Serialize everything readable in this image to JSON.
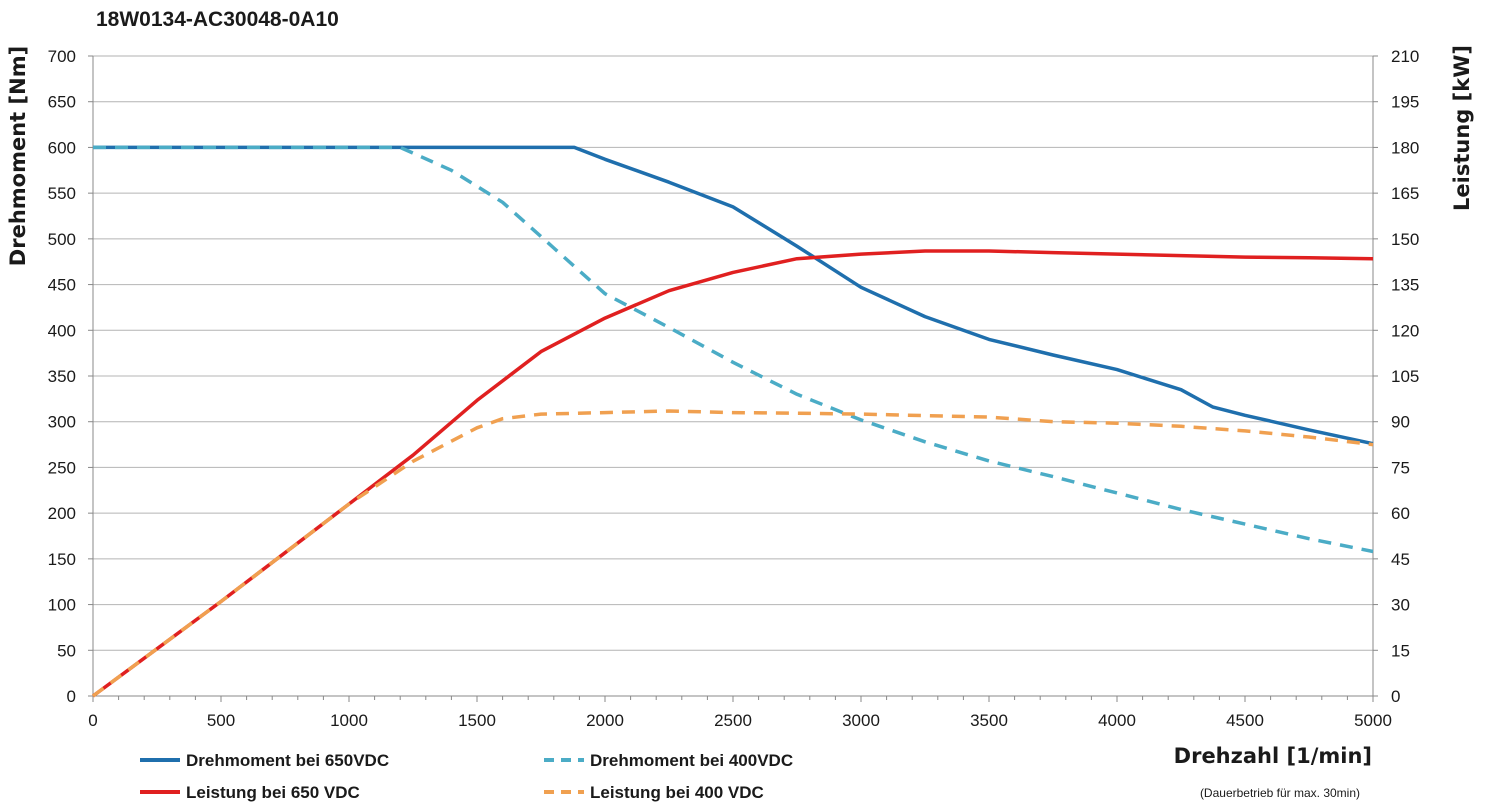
{
  "chart_data": {
    "type": "line",
    "title": "18W0134-AC30048-0A10",
    "xlabel": "Drehzahl [1/min]",
    "ylabel": "Drehmoment [Nm]",
    "y2label": "Leistung [kW]",
    "note": "(Dauerbetrieb für max. 30min)",
    "xlim": [
      0,
      5000
    ],
    "ylim": [
      0,
      700
    ],
    "y2lim": [
      0,
      210
    ],
    "x_ticks": [
      0,
      500,
      1000,
      1500,
      2000,
      2500,
      3000,
      3500,
      4000,
      4500,
      5000
    ],
    "y_ticks": [
      0,
      50,
      100,
      150,
      200,
      250,
      300,
      350,
      400,
      450,
      500,
      550,
      600,
      650,
      700
    ],
    "y2_ticks": [
      0,
      15,
      30,
      45,
      60,
      75,
      90,
      105,
      120,
      135,
      150,
      165,
      180,
      195,
      210
    ],
    "x_tick_labels": [
      "0",
      "500",
      "1000",
      "1500",
      "2000",
      "2500",
      "3000",
      "3500",
      "4000",
      "4500",
      "5000"
    ],
    "y_tick_labels": [
      "0",
      "50",
      "100",
      "150",
      "200",
      "250",
      "300",
      "350",
      "400",
      "450",
      "500",
      "550",
      "600",
      "650",
      "700"
    ],
    "y2_tick_labels": [
      "0",
      "15",
      "30",
      "45",
      "60",
      "75",
      "90",
      "105",
      "120",
      "135",
      "150",
      "165",
      "180",
      "195",
      "210"
    ],
    "grid": true,
    "legend_position": "bottom",
    "series": [
      {
        "name": "Drehmoment bei 650VDC",
        "axis": "left",
        "color": "#1f6fad",
        "dash": "solid",
        "x": [
          0,
          500,
          1000,
          1500,
          1880,
          2000,
          2250,
          2500,
          2750,
          3000,
          3250,
          3500,
          3750,
          4000,
          4250,
          4375,
          4500,
          4750,
          5000
        ],
        "y": [
          600,
          600,
          600,
          600,
          600,
          587,
          562,
          535,
          492,
          447,
          415,
          390,
          373,
          357,
          335,
          316,
          307,
          291,
          276
        ]
      },
      {
        "name": "Drehmoment bei 400VDC",
        "axis": "left",
        "color": "#4bacc6",
        "dash": "dashed",
        "x": [
          0,
          500,
          1000,
          1200,
          1400,
          1600,
          1800,
          2000,
          2250,
          2500,
          2750,
          3000,
          3250,
          3500,
          3750,
          4000,
          4250,
          4500,
          4750,
          5000
        ],
        "y": [
          600,
          600,
          600,
          600,
          575,
          540,
          490,
          440,
          403,
          365,
          330,
          302,
          278,
          257,
          240,
          222,
          204,
          188,
          172,
          158
        ]
      },
      {
        "name": "Leistung bei 650 VDC",
        "axis": "right",
        "color": "#e02020",
        "dash": "solid",
        "x": [
          0,
          500,
          1000,
          1250,
          1500,
          1750,
          2000,
          2250,
          2500,
          2750,
          3000,
          3250,
          3500,
          3750,
          4000,
          4250,
          4500,
          4750,
          5000
        ],
        "y": [
          0,
          31,
          63,
          79,
          97,
          113,
          124,
          133,
          139,
          143.5,
          145,
          146,
          146,
          145.5,
          145,
          144.5,
          144,
          143.8,
          143.5
        ]
      },
      {
        "name": "Leistung bei 400 VDC",
        "axis": "right",
        "color": "#f0a050",
        "dash": "dashed",
        "x": [
          0,
          500,
          1000,
          1250,
          1500,
          1600,
          1750,
          2000,
          2250,
          2500,
          2750,
          3000,
          3250,
          3500,
          3750,
          4000,
          4250,
          4500,
          4750,
          5000
        ],
        "y": [
          0,
          31,
          63,
          77,
          88,
          91,
          92.5,
          93,
          93.5,
          93,
          92.8,
          92.5,
          92,
          91.5,
          90,
          89.5,
          88.5,
          87,
          85,
          82.5
        ]
      }
    ]
  }
}
